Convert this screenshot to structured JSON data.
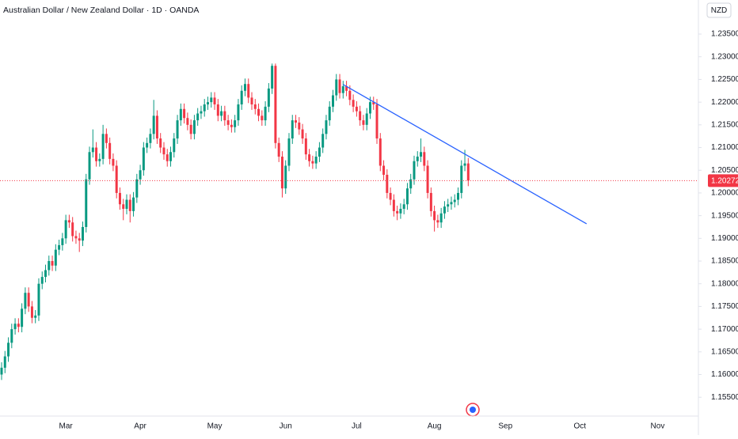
{
  "chart_data": {
    "type": "candlestick",
    "title": "Australian Dollar / New Zealand Dollar · 1D · OANDA",
    "currency": "NZD",
    "up_color": "#089981",
    "down_color": "#f23645",
    "categories": [
      null,
      null,
      null,
      null,
      null,
      null,
      null,
      null,
      null,
      null,
      null,
      null,
      null,
      null,
      null,
      null,
      null,
      null,
      null,
      "Mar",
      null,
      null,
      null,
      null,
      null,
      null,
      null,
      null,
      null,
      null,
      null,
      null,
      null,
      null,
      null,
      null,
      null,
      null,
      null,
      null,
      null,
      "Apr",
      null,
      null,
      null,
      null,
      null,
      null,
      null,
      null,
      null,
      null,
      null,
      null,
      null,
      null,
      null,
      null,
      null,
      null,
      null,
      null,
      null,
      "May",
      null,
      null,
      null,
      null,
      null,
      null,
      null,
      null,
      null,
      null,
      null,
      null,
      null,
      null,
      null,
      null,
      null,
      null,
      null,
      null,
      "Jun",
      null,
      null,
      null,
      null,
      null,
      null,
      null,
      null,
      null,
      null,
      null,
      null,
      null,
      null,
      null,
      null,
      null,
      null,
      null,
      null,
      "Jul",
      null,
      null,
      null,
      null,
      null,
      null,
      null,
      null,
      null,
      null,
      null,
      null,
      null,
      null,
      null,
      null,
      null,
      null,
      null,
      null,
      null,
      null,
      "Aug",
      null,
      null,
      null,
      null,
      null,
      null,
      null,
      null,
      null,
      null,
      null,
      null,
      null,
      null,
      null,
      null,
      null,
      null,
      null,
      null,
      "Sep",
      null,
      null,
      null,
      null,
      null,
      null,
      null,
      null,
      null,
      null,
      null,
      null,
      null,
      null,
      null,
      null,
      null,
      null,
      null,
      null,
      null,
      "Oct",
      null,
      null,
      null,
      null,
      null,
      null,
      null,
      null,
      null,
      null,
      null,
      null,
      null,
      null,
      null,
      null,
      null,
      null,
      null,
      null,
      null,
      null,
      "Nov",
      null
    ],
    "open": [
      1.16,
      1.1615,
      1.164,
      1.167,
      1.17,
      1.1712,
      1.1705,
      1.1745,
      1.178,
      1.175,
      1.1725,
      1.173,
      1.18,
      1.1815,
      1.183,
      1.185,
      1.184,
      1.1875,
      1.1885,
      1.19,
      1.194,
      1.1935,
      1.1905,
      1.19,
      1.1895,
      1.1925,
      1.203,
      1.209,
      1.21,
      1.207,
      1.2075,
      1.213,
      1.211,
      1.2075,
      1.206,
      1.2,
      1.1975,
      1.1965,
      1.1985,
      1.196,
      1.199,
      1.203,
      1.205,
      1.21,
      1.211,
      1.213,
      1.217,
      1.212,
      1.21,
      1.2085,
      1.207,
      1.209,
      1.212,
      1.216,
      1.2185,
      1.2165,
      1.215,
      1.213,
      1.216,
      1.2175,
      1.218,
      1.2195,
      1.22,
      1.221,
      1.2195,
      1.217,
      1.218,
      1.216,
      1.215,
      1.2145,
      1.216,
      1.2195,
      1.2225,
      1.224,
      1.221,
      1.2195,
      1.2185,
      1.217,
      1.216,
      1.219,
      1.223,
      1.228,
      1.211,
      1.208,
      1.201,
      1.206,
      1.212,
      1.216,
      1.2155,
      1.214,
      1.212,
      1.2085,
      1.207,
      1.2065,
      1.208,
      1.21,
      1.213,
      1.216,
      1.219,
      1.2215,
      1.225,
      1.222,
      1.2235,
      1.2225,
      1.2205,
      1.219,
      1.218,
      1.216,
      1.215,
      1.2175,
      1.22,
      1.2195,
      1.212,
      1.206,
      1.204,
      1.2,
      1.1985,
      1.196,
      1.1955,
      1.1965,
      1.1975,
      1.201,
      1.203,
      1.207,
      1.208,
      1.209,
      1.206,
      1.2,
      1.196,
      1.194,
      1.1935,
      1.1955,
      1.197,
      1.1975,
      1.198,
      1.1985,
      1.2,
      1.206,
      1.2065,
      null,
      null,
      null,
      null,
      null,
      null,
      null,
      null,
      null,
      null,
      null,
      null,
      null,
      null,
      null,
      null,
      null,
      null,
      null,
      null,
      null,
      null,
      null,
      null,
      null,
      null,
      null,
      null,
      null,
      null,
      null,
      null,
      null,
      null,
      null,
      null,
      null,
      null,
      null,
      null,
      null,
      null,
      null,
      null,
      null,
      null,
      null,
      null,
      null,
      null,
      null,
      null,
      null,
      null,
      null,
      null,
      null
    ],
    "high": [
      1.1627,
      1.1652,
      1.1682,
      1.1712,
      1.1724,
      1.1724,
      1.1757,
      1.1792,
      1.1792,
      1.1762,
      1.1742,
      1.1812,
      1.1827,
      1.1842,
      1.1862,
      1.1862,
      1.1887,
      1.1897,
      1.1912,
      1.1952,
      1.1952,
      1.1947,
      1.1917,
      1.1912,
      1.1937,
      1.2042,
      1.2102,
      1.214,
      1.2112,
      1.2087,
      1.215,
      1.2142,
      1.2122,
      1.2087,
      1.2072,
      1.2012,
      1.1987,
      1.1997,
      1.1997,
      1.2002,
      1.2042,
      1.2062,
      1.2112,
      1.2122,
      1.2142,
      1.2205,
      1.2182,
      1.2132,
      1.2112,
      1.2097,
      1.2102,
      1.2132,
      1.2172,
      1.2197,
      1.2197,
      1.2177,
      1.2162,
      1.2172,
      1.2187,
      1.2192,
      1.2207,
      1.2212,
      1.2222,
      1.2222,
      1.2207,
      1.2192,
      1.2192,
      1.2172,
      1.2162,
      1.2172,
      1.2207,
      1.2237,
      1.2252,
      1.2252,
      1.2222,
      1.2207,
      1.2197,
      1.2182,
      1.2202,
      1.2242,
      1.2285,
      1.2285,
      1.2122,
      1.2092,
      1.2072,
      1.2132,
      1.2172,
      1.2172,
      1.2167,
      1.2152,
      1.2132,
      1.2097,
      1.2082,
      1.2092,
      1.2112,
      1.2142,
      1.2172,
      1.2202,
      1.2227,
      1.2262,
      1.2262,
      1.2247,
      1.2247,
      1.2237,
      1.2217,
      1.2202,
      1.2192,
      1.2172,
      1.2187,
      1.2212,
      1.2212,
      1.2207,
      1.2132,
      1.2072,
      1.2052,
      1.2012,
      1.1997,
      1.1972,
      1.1977,
      1.1987,
      1.2022,
      1.2042,
      1.2082,
      1.2092,
      1.212,
      1.2102,
      1.2072,
      1.2012,
      1.1972,
      1.1952,
      1.1967,
      1.1982,
      1.1987,
      1.1992,
      1.1997,
      1.2012,
      1.2072,
      1.2095,
      1.2077,
      null,
      null,
      null,
      null,
      null,
      null,
      null,
      null,
      null,
      null,
      null,
      null,
      null,
      null,
      null,
      null,
      null,
      null,
      null,
      null,
      null,
      null,
      null,
      null,
      null,
      null,
      null,
      null,
      null,
      null,
      null,
      null,
      null,
      null,
      null,
      null,
      null,
      null,
      null,
      null,
      null,
      null,
      null,
      null,
      null,
      null,
      null,
      null,
      null,
      null,
      null,
      null,
      null,
      null,
      null,
      null,
      null
    ],
    "low": [
      1.1588,
      1.1603,
      1.1628,
      1.1658,
      1.1688,
      1.1693,
      1.1693,
      1.1733,
      1.1738,
      1.1713,
      1.1713,
      1.1718,
      1.1788,
      1.1803,
      1.1818,
      1.1828,
      1.1828,
      1.1863,
      1.1873,
      1.1888,
      1.1923,
      1.1893,
      1.1888,
      1.187,
      1.1883,
      1.1913,
      1.2018,
      1.2078,
      1.2058,
      1.2058,
      1.2063,
      1.2098,
      1.2063,
      1.2048,
      1.1988,
      1.1963,
      1.194,
      1.1953,
      1.1935,
      1.1948,
      1.1978,
      1.2018,
      1.2038,
      1.2088,
      1.2098,
      1.2118,
      1.2108,
      1.2088,
      1.2073,
      1.2058,
      1.2058,
      1.2078,
      1.2108,
      1.2148,
      1.2153,
      1.2138,
      1.2118,
      1.2118,
      1.2148,
      1.2163,
      1.2168,
      1.2183,
      1.2188,
      1.2183,
      1.2158,
      1.2158,
      1.2148,
      1.2138,
      1.2133,
      1.2133,
      1.2148,
      1.2183,
      1.2213,
      1.2198,
      1.2183,
      1.2173,
      1.2158,
      1.2148,
      1.2148,
      1.2178,
      1.2218,
      1.2098,
      1.2068,
      1.199,
      1.1998,
      1.2048,
      1.2108,
      1.2143,
      1.2128,
      1.2108,
      1.2073,
      1.2058,
      1.2053,
      1.2053,
      1.2068,
      1.2088,
      1.2118,
      1.2148,
      1.2178,
      1.2203,
      1.2208,
      1.2208,
      1.2213,
      1.2193,
      1.2178,
      1.2168,
      1.2148,
      1.2138,
      1.2138,
      1.2163,
      1.2183,
      1.2108,
      1.2048,
      1.2028,
      1.1988,
      1.1973,
      1.1948,
      1.194,
      1.1943,
      1.1953,
      1.1963,
      1.1998,
      1.2018,
      1.2058,
      1.2068,
      1.2048,
      1.1988,
      1.1948,
      1.1915,
      1.1923,
      1.1923,
      1.1943,
      1.1958,
      1.1963,
      1.1968,
      1.1973,
      1.1988,
      1.2048,
      1.2015,
      null,
      null,
      null,
      null,
      null,
      null,
      null,
      null,
      null,
      null,
      null,
      null,
      null,
      null,
      null,
      null,
      null,
      null,
      null,
      null,
      null,
      null,
      null,
      null,
      null,
      null,
      null,
      null,
      null,
      null,
      null,
      null,
      null,
      null,
      null,
      null,
      null,
      null,
      null,
      null,
      null,
      null,
      null,
      null,
      null,
      null,
      null,
      null,
      null,
      null,
      null,
      null,
      null,
      null,
      null,
      null,
      null
    ],
    "close": [
      1.1615,
      1.164,
      1.167,
      1.17,
      1.1712,
      1.1705,
      1.1745,
      1.178,
      1.175,
      1.1725,
      1.173,
      1.18,
      1.1815,
      1.183,
      1.185,
      1.184,
      1.1875,
      1.1885,
      1.19,
      1.194,
      1.1935,
      1.1905,
      1.19,
      1.1895,
      1.1925,
      1.203,
      1.209,
      1.21,
      1.207,
      1.2075,
      1.213,
      1.211,
      1.2075,
      1.206,
      1.2,
      1.1975,
      1.1965,
      1.1985,
      1.196,
      1.199,
      1.203,
      1.205,
      1.21,
      1.211,
      1.213,
      1.217,
      1.212,
      1.21,
      1.2085,
      1.207,
      1.209,
      1.212,
      1.216,
      1.2185,
      1.2165,
      1.215,
      1.213,
      1.216,
      1.2175,
      1.218,
      1.2195,
      1.22,
      1.221,
      1.2195,
      1.217,
      1.218,
      1.216,
      1.215,
      1.2145,
      1.216,
      1.2195,
      1.2225,
      1.224,
      1.221,
      1.2195,
      1.2185,
      1.217,
      1.216,
      1.219,
      1.223,
      1.228,
      1.211,
      1.208,
      1.201,
      1.206,
      1.212,
      1.216,
      1.2155,
      1.214,
      1.212,
      1.2085,
      1.207,
      1.2065,
      1.208,
      1.21,
      1.213,
      1.216,
      1.219,
      1.2215,
      1.225,
      1.222,
      1.2235,
      1.2225,
      1.2205,
      1.219,
      1.218,
      1.216,
      1.215,
      1.2175,
      1.22,
      1.2195,
      1.212,
      1.206,
      1.204,
      1.2,
      1.1985,
      1.196,
      1.1955,
      1.1965,
      1.1975,
      1.201,
      1.203,
      1.207,
      1.208,
      1.209,
      1.206,
      1.2,
      1.196,
      1.194,
      1.1935,
      1.1955,
      1.197,
      1.1975,
      1.198,
      1.1985,
      1.2,
      1.206,
      1.2065,
      1.20272,
      null,
      null,
      null,
      null,
      null,
      null,
      null,
      null,
      null,
      null,
      null,
      null,
      null,
      null,
      null,
      null,
      null,
      null,
      null,
      null,
      null,
      null,
      null,
      null,
      null,
      null,
      null,
      null,
      null,
      null,
      null,
      null,
      null,
      null,
      null,
      null,
      null,
      null,
      null,
      null,
      null,
      null,
      null,
      null,
      null,
      null,
      null,
      null,
      null,
      null,
      null,
      null,
      null,
      null,
      null,
      null,
      null
    ],
    "trendline": {
      "x": [
        101,
        173
      ],
      "values": [
        1.2239,
        1.1932
      ],
      "color": "#2962ff"
    },
    "last_price": 1.20272,
    "ylim": [
      1.1519,
      1.2425
    ],
    "yticks": [
      {
        "value": 1.155,
        "label": "1.15500"
      },
      {
        "value": 1.16,
        "label": "1.16000"
      },
      {
        "value": 1.165,
        "label": "1.16500"
      },
      {
        "value": 1.17,
        "label": "1.17000"
      },
      {
        "value": 1.175,
        "label": "1.17500"
      },
      {
        "value": 1.18,
        "label": "1.18000"
      },
      {
        "value": 1.185,
        "label": "1.18500"
      },
      {
        "value": 1.19,
        "label": "1.19000"
      },
      {
        "value": 1.195,
        "label": "1.19500"
      },
      {
        "value": 1.2,
        "label": "1.20000"
      },
      {
        "value": 1.205,
        "label": "1.20500"
      },
      {
        "value": 1.21,
        "label": "1.21000"
      },
      {
        "value": 1.215,
        "label": "1.21500"
      },
      {
        "value": 1.22,
        "label": "1.22000"
      },
      {
        "value": 1.225,
        "label": "1.22500"
      },
      {
        "value": 1.23,
        "label": "1.23000"
      },
      {
        "value": 1.235,
        "label": "1.23500"
      }
    ],
    "grid": false
  }
}
